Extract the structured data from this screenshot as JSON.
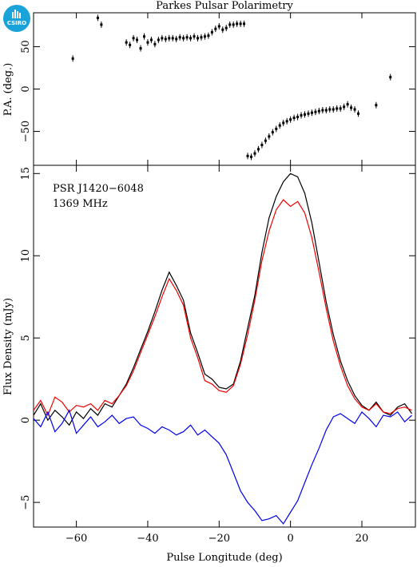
{
  "title": "Parkes Pulsar Polarimetry",
  "logo": {
    "text": "CSIRO",
    "color": "#1aa3d8"
  },
  "annotations": [
    "PSR J1420−6048",
    "1369 MHz"
  ],
  "chart_data": [
    {
      "type": "scatter",
      "panel": "position-angle",
      "ylabel": "P.A. (deg.)",
      "xlim": [
        -72,
        35
      ],
      "ylim": [
        -90,
        90
      ],
      "yticks": [
        -50,
        0,
        50
      ],
      "marker_color": "#000000",
      "points": [
        [
          -61,
          36
        ],
        [
          -54,
          84
        ],
        [
          -53,
          76
        ],
        [
          -46,
          55
        ],
        [
          -45,
          52
        ],
        [
          -44,
          60
        ],
        [
          -43,
          58
        ],
        [
          -42,
          48
        ],
        [
          -41,
          62
        ],
        [
          -40,
          55
        ],
        [
          -39,
          58
        ],
        [
          -38,
          53
        ],
        [
          -37,
          58
        ],
        [
          -36,
          60
        ],
        [
          -35,
          59
        ],
        [
          -34,
          60
        ],
        [
          -33,
          60
        ],
        [
          -32,
          59
        ],
        [
          -31,
          61
        ],
        [
          -30,
          60
        ],
        [
          -29,
          61
        ],
        [
          -28,
          60
        ],
        [
          -27,
          62
        ],
        [
          -26,
          60
        ],
        [
          -25,
          61
        ],
        [
          -24,
          62
        ],
        [
          -23,
          63
        ],
        [
          -22,
          67
        ],
        [
          -21,
          71
        ],
        [
          -20,
          74
        ],
        [
          -19,
          70
        ],
        [
          -18,
          72
        ],
        [
          -17,
          76
        ],
        [
          -16,
          76
        ],
        [
          -15,
          77
        ],
        [
          -14,
          77
        ],
        [
          -13,
          77
        ],
        [
          -12,
          -79
        ],
        [
          -11,
          -80
        ],
        [
          -10,
          -76
        ],
        [
          -9,
          -71
        ],
        [
          -8,
          -66
        ],
        [
          -7,
          -61
        ],
        [
          -6,
          -56
        ],
        [
          -5,
          -51
        ],
        [
          -4,
          -47
        ],
        [
          -3,
          -43
        ],
        [
          -2,
          -40
        ],
        [
          -1,
          -38
        ],
        [
          0,
          -36
        ],
        [
          1,
          -34
        ],
        [
          2,
          -33
        ],
        [
          3,
          -31
        ],
        [
          4,
          -30
        ],
        [
          5,
          -29
        ],
        [
          6,
          -28
        ],
        [
          7,
          -27
        ],
        [
          8,
          -26
        ],
        [
          9,
          -25
        ],
        [
          10,
          -25
        ],
        [
          11,
          -24
        ],
        [
          12,
          -24
        ],
        [
          13,
          -23
        ],
        [
          14,
          -23
        ],
        [
          15,
          -21
        ],
        [
          16,
          -18
        ],
        [
          17,
          -22
        ],
        [
          18,
          -24
        ],
        [
          19,
          -29
        ],
        [
          24,
          -19
        ],
        [
          28,
          14
        ]
      ]
    },
    {
      "type": "line",
      "panel": "flux-profile",
      "xlabel": "Pulse Longitude (deg)",
      "ylabel": "Flux Density (mJy)",
      "xlim": [
        -72,
        35
      ],
      "ylim": [
        -6.5,
        15.5
      ],
      "xticks": [
        -60,
        -40,
        -20,
        0,
        20
      ],
      "yticks": [
        -5,
        0,
        5,
        10,
        15
      ],
      "x": [
        -72,
        -70,
        -68,
        -66,
        -64,
        -62,
        -60,
        -58,
        -56,
        -54,
        -52,
        -50,
        -48,
        -46,
        -44,
        -42,
        -40,
        -38,
        -36,
        -34,
        -32,
        -30,
        -28,
        -26,
        -24,
        -22,
        -20,
        -18,
        -16,
        -14,
        -12,
        -10,
        -8,
        -6,
        -4,
        -2,
        0,
        2,
        4,
        6,
        8,
        10,
        12,
        14,
        16,
        18,
        20,
        22,
        24,
        26,
        28,
        30,
        32,
        34
      ],
      "series": [
        {
          "color": "#000000",
          "values": [
            0.3,
            1.0,
            0.0,
            0.6,
            0.2,
            -0.3,
            0.5,
            0.1,
            0.7,
            0.3,
            1.0,
            0.8,
            1.5,
            2.2,
            3.2,
            4.3,
            5.4,
            6.6,
            7.9,
            9.0,
            8.2,
            7.3,
            5.3,
            4.1,
            2.8,
            2.5,
            2.0,
            1.9,
            2.2,
            3.6,
            5.6,
            7.6,
            10.2,
            12.3,
            13.6,
            14.5,
            15.0,
            14.8,
            13.8,
            12.0,
            9.6,
            7.2,
            5.2,
            3.6,
            2.4,
            1.5,
            0.9,
            0.6,
            1.1,
            0.5,
            0.3,
            0.8,
            1.0,
            0.4
          ]
        },
        {
          "color": "#ee0000",
          "values": [
            0.6,
            1.2,
            0.3,
            1.4,
            1.1,
            0.5,
            0.9,
            0.8,
            1.0,
            0.6,
            1.2,
            1.0,
            1.5,
            2.1,
            3.0,
            4.1,
            5.2,
            6.3,
            7.5,
            8.6,
            7.9,
            7.0,
            5.0,
            3.8,
            2.4,
            2.2,
            1.8,
            1.7,
            2.1,
            3.4,
            5.2,
            7.3,
            9.7,
            11.5,
            12.8,
            13.4,
            13.0,
            13.3,
            12.6,
            11.1,
            9.0,
            6.8,
            4.8,
            3.3,
            2.1,
            1.3,
            0.8,
            0.6,
            1.0,
            0.5,
            0.4,
            0.7,
            0.8,
            0.6
          ]
        },
        {
          "color": "#0000ee",
          "values": [
            0.1,
            -0.4,
            0.5,
            -0.7,
            -0.2,
            0.6,
            -0.8,
            -0.3,
            0.2,
            -0.4,
            -0.1,
            0.3,
            -0.2,
            0.1,
            0.2,
            -0.3,
            -0.5,
            -0.8,
            -0.4,
            -0.6,
            -0.9,
            -0.7,
            -0.3,
            -0.9,
            -0.6,
            -1.0,
            -1.4,
            -2.1,
            -3.2,
            -4.3,
            -5.0,
            -5.5,
            -6.1,
            -6.0,
            -5.8,
            -6.3,
            -5.6,
            -4.9,
            -3.8,
            -2.7,
            -1.7,
            -0.6,
            0.2,
            0.4,
            0.1,
            -0.2,
            0.5,
            0.1,
            -0.4,
            0.3,
            0.2,
            0.5,
            -0.1,
            0.3
          ]
        }
      ]
    }
  ]
}
